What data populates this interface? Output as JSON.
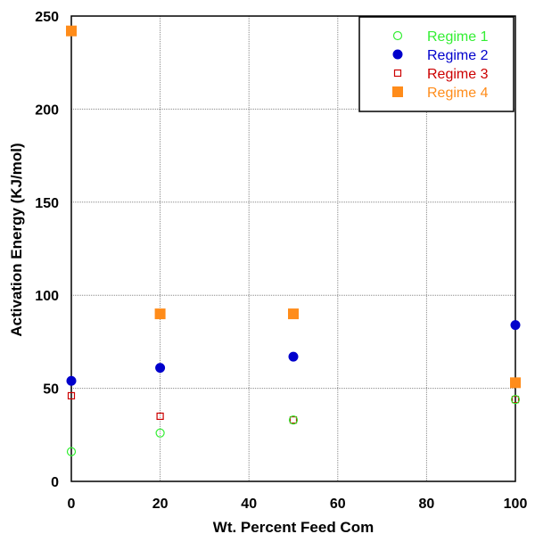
{
  "chart_data": {
    "type": "scatter",
    "title": "",
    "xlabel": "Wt. Percent Feed Com",
    "ylabel": "Activation Energy (KJ/mol)",
    "xlim": [
      0,
      100
    ],
    "ylim": [
      0,
      250
    ],
    "xticks": [
      "0",
      "20",
      "40",
      "60",
      "80",
      "100"
    ],
    "yticks": [
      "0",
      "50",
      "100",
      "150",
      "200",
      "250"
    ],
    "grid": "dotted",
    "legend_position": "top-right",
    "series": [
      {
        "name": "Regime 1",
        "marker": "open-circle",
        "color": "#33ee33",
        "x": [
          0,
          20,
          50,
          100
        ],
        "y": [
          16,
          26,
          33,
          44
        ]
      },
      {
        "name": "Regime 2",
        "marker": "filled-circle",
        "color": "#0000cc",
        "x": [
          0,
          20,
          50,
          100
        ],
        "y": [
          54,
          61,
          67,
          84
        ]
      },
      {
        "name": "Regime 3",
        "marker": "open-square",
        "color": "#cc0000",
        "x": [
          0,
          20,
          50,
          100
        ],
        "y": [
          46,
          35,
          33,
          44
        ]
      },
      {
        "name": "Regime 4",
        "marker": "filled-square",
        "color": "#ff8c1a",
        "x": [
          0,
          20,
          50,
          100
        ],
        "y": [
          242,
          90,
          90,
          53
        ]
      }
    ]
  }
}
